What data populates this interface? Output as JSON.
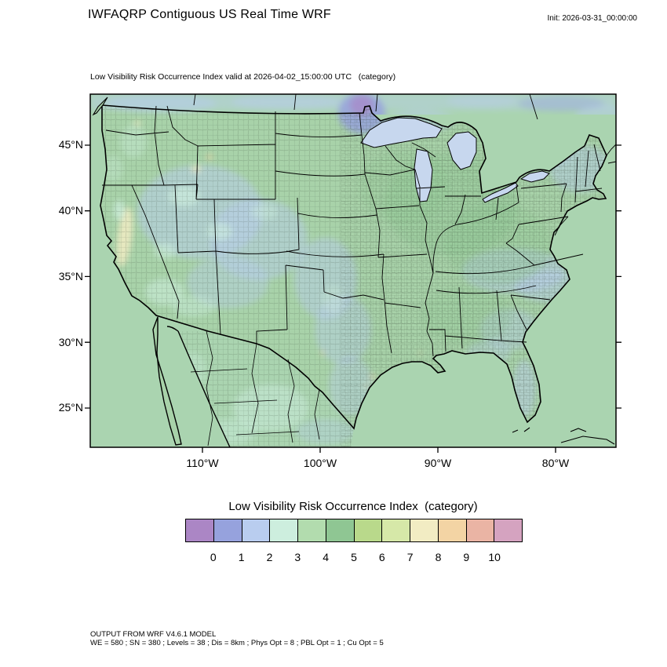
{
  "header": {
    "title": "IWFAQRP Contiguous US Real Time WRF",
    "init": "Init: 2026-03-31_00:00:00"
  },
  "map": {
    "subtitle": "Low Visibility Risk Occurrence Index valid at 2026-04-02_15:00:00 UTC   (category)",
    "lat_labels": [
      "45°N",
      "40°N",
      "35°N",
      "30°N",
      "25°N"
    ],
    "lon_labels": [
      "110°W",
      "100°W",
      "90°W",
      "80°W"
    ]
  },
  "legend": {
    "title": "Low Visibility Risk Occurrence Index  (category)",
    "tick_labels": [
      "0",
      "1",
      "2",
      "3",
      "4",
      "5",
      "6",
      "7",
      "8",
      "9",
      "10"
    ],
    "colors": [
      "#ab86c5",
      "#96a2dd",
      "#b9cdef",
      "#cdeede",
      "#b2dcae",
      "#8fc693",
      "#b9d98b",
      "#d6e8a8",
      "#f2ecc3",
      "#f3d4a4",
      "#eab4a4",
      "#d5a3c0"
    ]
  },
  "map_colors": {
    "background": "#aad4b0",
    "land": "#a8d2a9",
    "lake": "#c7d7ee",
    "boundary": "#000000"
  },
  "footer": {
    "line1": "OUTPUT FROM WRF V4.6.1 MODEL",
    "line2": "WE = 580 ; SN = 380 ; Levels = 38 ; Dis = 8km ; Phys Opt = 8 ; PBL Opt = 1 ; Cu Opt = 5"
  }
}
